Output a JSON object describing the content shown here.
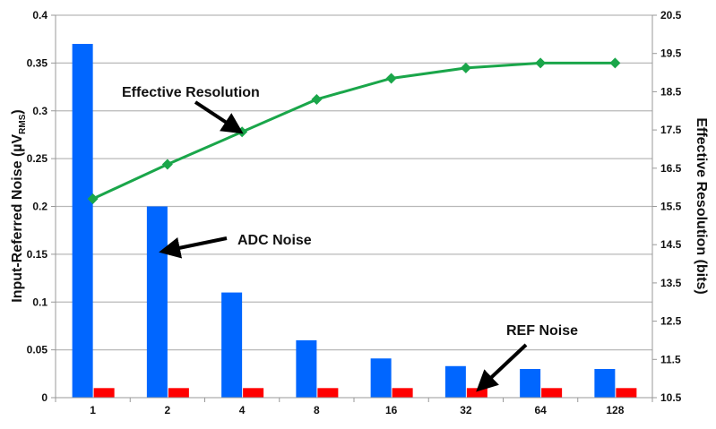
{
  "chart_data": {
    "type": "bar",
    "categories": [
      "1",
      "2",
      "4",
      "8",
      "16",
      "32",
      "64",
      "128"
    ],
    "series": [
      {
        "name": "ADC Noise",
        "axis": "left",
        "kind": "bar",
        "color": "#0066ff",
        "values": [
          0.37,
          0.2,
          0.11,
          0.06,
          0.041,
          0.033,
          0.03,
          0.03
        ]
      },
      {
        "name": "REF Noise",
        "axis": "left",
        "kind": "bar",
        "color": "#ff0000",
        "values": [
          0.01,
          0.01,
          0.01,
          0.01,
          0.01,
          0.01,
          0.01,
          0.01
        ]
      },
      {
        "name": "Effective Resolution",
        "axis": "right",
        "kind": "line",
        "color": "#1aa64a",
        "values": [
          15.7,
          16.6,
          17.45,
          18.3,
          18.85,
          19.12,
          19.25,
          19.25
        ]
      }
    ],
    "ylabel": "Input-Referred Noise (µV",
    "ylabel_sub": "RMS",
    "ylabel_close": ")",
    "y2label": "Effective Resolution (bits)",
    "ylim": [
      0,
      0.4
    ],
    "y2lim": [
      10.5,
      20.5
    ],
    "yticks": [
      "0",
      "0.05",
      "0.1",
      "0.15",
      "0.2",
      "0.25",
      "0.3",
      "0.35",
      "0.4"
    ],
    "y2ticks": [
      "10.5",
      "11.5",
      "12.5",
      "13.5",
      "14.5",
      "15.5",
      "16.5",
      "17.5",
      "18.5",
      "19.5",
      "20.5"
    ],
    "grid": true,
    "annotations": [
      {
        "text": "Effective Resolution",
        "target_series": 2,
        "target_index": 2
      },
      {
        "text": "ADC Noise",
        "target_series": 0,
        "target_index": 1
      },
      {
        "text": "REF Noise",
        "target_series": 1,
        "target_index": 5
      }
    ]
  }
}
